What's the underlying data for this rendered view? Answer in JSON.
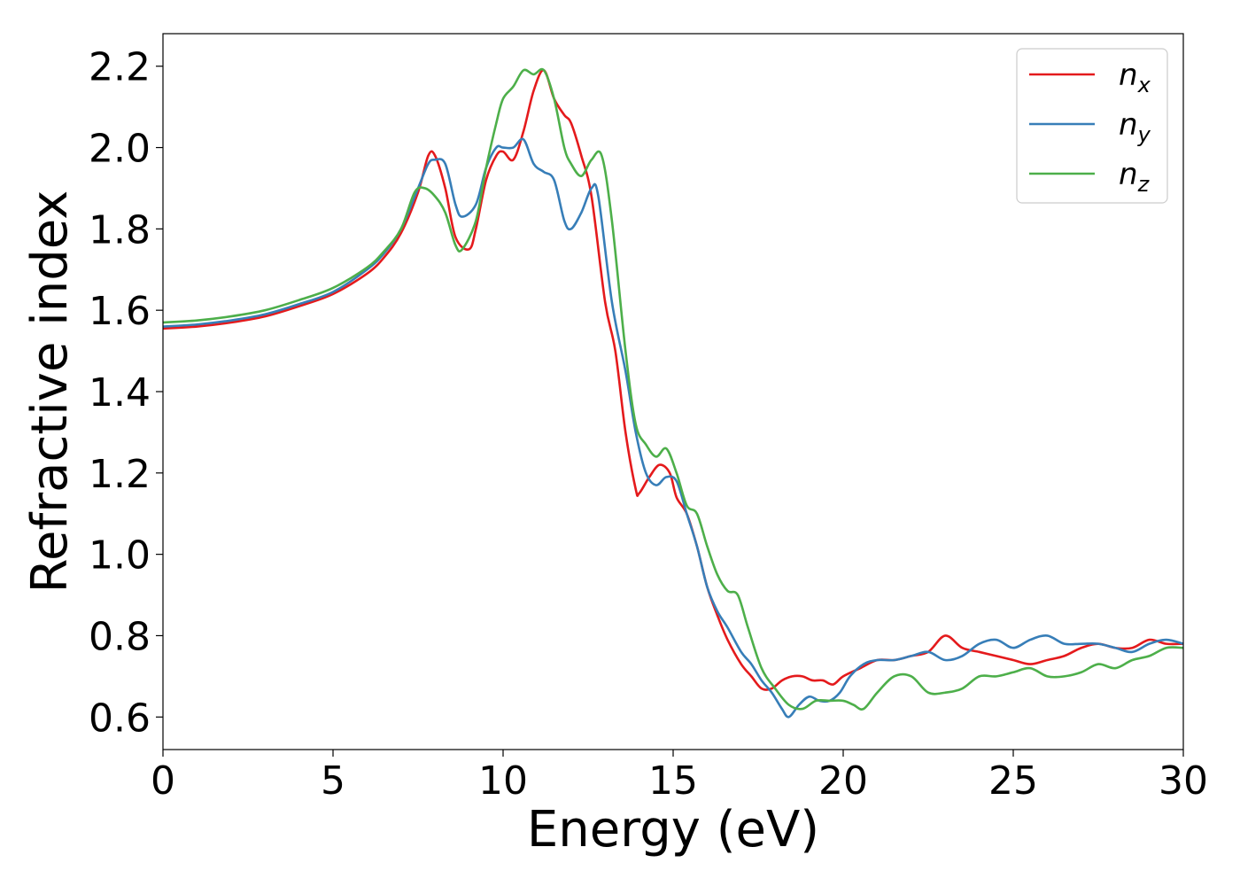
{
  "chart_data": {
    "type": "line",
    "xlabel": "Energy (eV)",
    "ylabel": "Refractive index",
    "xlim": [
      0,
      30
    ],
    "ylim": [
      0.52,
      2.28
    ],
    "xticks": [
      "0",
      "5",
      "10",
      "15",
      "20",
      "25",
      "30"
    ],
    "xtick_values": [
      0,
      5,
      10,
      15,
      20,
      25,
      30
    ],
    "yticks": [
      "0.6",
      "0.8",
      "1.0",
      "1.2",
      "1.4",
      "1.6",
      "1.8",
      "2.0",
      "2.2"
    ],
    "ytick_values": [
      0.6,
      0.8,
      1.0,
      1.2,
      1.4,
      1.6,
      1.8,
      2.0,
      2.2
    ],
    "grid": false,
    "legend_position": "top-right",
    "series": [
      {
        "name": "n",
        "subscript": "x",
        "color": "#e41a1c",
        "x": [
          0,
          1,
          2,
          3,
          4,
          5,
          6,
          6.5,
          7,
          7.5,
          7.8,
          8.0,
          8.3,
          8.6,
          9.0,
          9.2,
          9.5,
          9.8,
          10.0,
          10.3,
          10.6,
          10.9,
          11.2,
          11.5,
          11.8,
          12.0,
          12.3,
          12.6,
          13.0,
          13.3,
          13.6,
          13.9,
          14.0,
          14.3,
          14.6,
          14.9,
          15.1,
          15.4,
          15.7,
          16.0,
          16.3,
          16.6,
          17.0,
          17.3,
          17.6,
          17.9,
          18.2,
          18.5,
          18.8,
          19.1,
          19.4,
          19.7,
          20.0,
          20.5,
          21.0,
          21.5,
          22.0,
          22.5,
          23.0,
          23.5,
          24.0,
          24.5,
          25.0,
          25.5,
          26.0,
          26.5,
          27.0,
          27.5,
          28.0,
          28.5,
          29.0,
          29.5,
          30.0
        ],
        "y": [
          1.555,
          1.56,
          1.57,
          1.585,
          1.61,
          1.64,
          1.69,
          1.73,
          1.79,
          1.89,
          1.98,
          1.98,
          1.9,
          1.78,
          1.75,
          1.8,
          1.92,
          1.98,
          1.99,
          1.97,
          2.04,
          2.14,
          2.19,
          2.12,
          2.08,
          2.06,
          1.98,
          1.88,
          1.62,
          1.5,
          1.3,
          1.16,
          1.15,
          1.19,
          1.22,
          1.2,
          1.14,
          1.1,
          1.02,
          0.92,
          0.85,
          0.79,
          0.73,
          0.7,
          0.67,
          0.67,
          0.69,
          0.7,
          0.7,
          0.69,
          0.69,
          0.68,
          0.7,
          0.72,
          0.74,
          0.74,
          0.75,
          0.76,
          0.8,
          0.77,
          0.76,
          0.75,
          0.74,
          0.73,
          0.74,
          0.75,
          0.77,
          0.78,
          0.77,
          0.77,
          0.79,
          0.78,
          0.78
        ]
      },
      {
        "name": "n",
        "subscript": "y",
        "color": "#377eb8",
        "x": [
          0,
          1,
          2,
          3,
          4,
          5,
          6,
          6.5,
          7,
          7.5,
          7.8,
          8.0,
          8.3,
          8.6,
          8.8,
          9.2,
          9.5,
          9.8,
          10.0,
          10.3,
          10.6,
          10.9,
          11.2,
          11.5,
          11.8,
          12.0,
          12.3,
          12.6,
          12.8,
          13.2,
          13.6,
          13.9,
          14.2,
          14.5,
          14.8,
          15.1,
          15.4,
          15.7,
          16.0,
          16.3,
          16.6,
          17.0,
          17.3,
          17.6,
          17.9,
          18.2,
          18.4,
          18.7,
          19.0,
          19.3,
          19.6,
          19.9,
          20.2,
          20.6,
          21.0,
          21.5,
          22.0,
          22.5,
          23.0,
          23.5,
          24.0,
          24.5,
          25.0,
          25.5,
          26.0,
          26.5,
          27.0,
          27.5,
          28.0,
          28.5,
          29.0,
          29.5,
          30.0
        ],
        "y": [
          1.56,
          1.565,
          1.575,
          1.59,
          1.615,
          1.645,
          1.7,
          1.74,
          1.8,
          1.9,
          1.96,
          1.97,
          1.96,
          1.86,
          1.83,
          1.86,
          1.95,
          2.0,
          2.0,
          2.0,
          2.02,
          1.96,
          1.94,
          1.92,
          1.82,
          1.8,
          1.84,
          1.9,
          1.88,
          1.62,
          1.45,
          1.3,
          1.2,
          1.17,
          1.19,
          1.18,
          1.1,
          1.02,
          0.92,
          0.86,
          0.82,
          0.76,
          0.73,
          0.69,
          0.66,
          0.62,
          0.6,
          0.63,
          0.65,
          0.64,
          0.64,
          0.66,
          0.7,
          0.73,
          0.74,
          0.74,
          0.75,
          0.76,
          0.74,
          0.75,
          0.78,
          0.79,
          0.77,
          0.79,
          0.8,
          0.78,
          0.78,
          0.78,
          0.77,
          0.76,
          0.78,
          0.79,
          0.78
        ]
      },
      {
        "name": "n",
        "subscript": "z",
        "color": "#4daf4a",
        "x": [
          0,
          1,
          2,
          3,
          4,
          5,
          6,
          6.5,
          7,
          7.4,
          7.7,
          8.0,
          8.3,
          8.6,
          8.8,
          9.2,
          9.5,
          9.8,
          10.0,
          10.3,
          10.6,
          10.9,
          11.2,
          11.5,
          11.8,
          12.0,
          12.3,
          12.6,
          12.9,
          13.2,
          13.6,
          13.9,
          14.2,
          14.5,
          14.8,
          15.1,
          15.4,
          15.7,
          16.0,
          16.3,
          16.6,
          16.9,
          17.2,
          17.6,
          18.0,
          18.4,
          18.8,
          19.2,
          19.6,
          20.0,
          20.3,
          20.6,
          21.0,
          21.5,
          22.0,
          22.5,
          23.0,
          23.5,
          24.0,
          24.5,
          25.0,
          25.5,
          26.0,
          26.5,
          27.0,
          27.5,
          28.0,
          28.5,
          29.0,
          29.5,
          30.0
        ],
        "y": [
          1.57,
          1.575,
          1.585,
          1.6,
          1.625,
          1.655,
          1.705,
          1.745,
          1.8,
          1.89,
          1.9,
          1.88,
          1.84,
          1.76,
          1.75,
          1.82,
          1.95,
          2.06,
          2.12,
          2.15,
          2.19,
          2.18,
          2.19,
          2.12,
          2.0,
          1.96,
          1.93,
          1.97,
          1.98,
          1.82,
          1.5,
          1.32,
          1.27,
          1.24,
          1.26,
          1.2,
          1.12,
          1.1,
          1.02,
          0.95,
          0.91,
          0.9,
          0.82,
          0.72,
          0.67,
          0.63,
          0.62,
          0.64,
          0.64,
          0.64,
          0.63,
          0.62,
          0.66,
          0.7,
          0.7,
          0.66,
          0.66,
          0.67,
          0.7,
          0.7,
          0.71,
          0.72,
          0.7,
          0.7,
          0.71,
          0.73,
          0.72,
          0.74,
          0.75,
          0.77,
          0.77
        ]
      }
    ]
  }
}
